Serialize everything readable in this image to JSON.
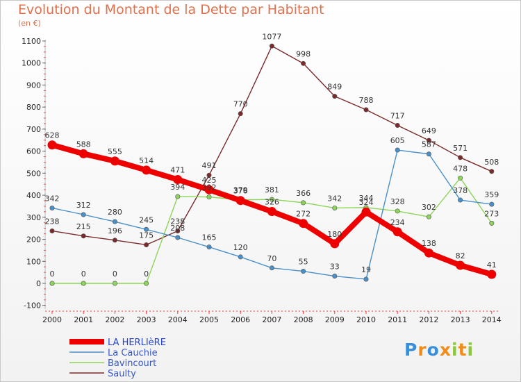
{
  "header": {
    "title": "Evolution du Montant de la Dette par Habitant",
    "unit": "(en €)"
  },
  "logo": {
    "text": "Proxiti"
  },
  "chart_data": {
    "type": "line",
    "title": "Evolution du Montant de la Dette par Habitant",
    "ylabel": "(en €)",
    "xlabel": "",
    "x": [
      "2000",
      "2001",
      "2002",
      "2003",
      "2004",
      "2005",
      "2006",
      "2007",
      "2008",
      "2009",
      "2010",
      "2011",
      "2012",
      "2013",
      "2014"
    ],
    "ylim": [
      -100,
      1100
    ],
    "yticks": [
      -100,
      0,
      100,
      200,
      300,
      400,
      500,
      600,
      700,
      800,
      900,
      1000,
      1100
    ],
    "grid": false,
    "legend_position": "bottom-left",
    "series": [
      {
        "name": "LA HERLIèRE",
        "color": "#ee0000",
        "values": [
          628,
          588,
          555,
          514,
          471,
          425,
          376,
          326,
          272,
          180,
          324,
          234,
          138,
          82,
          41
        ]
      },
      {
        "name": "La Cauchie",
        "color": "#4a90c8",
        "values": [
          342,
          312,
          280,
          245,
          208,
          165,
          120,
          70,
          55,
          33,
          19,
          605,
          587,
          378,
          359
        ]
      },
      {
        "name": "Bavincourt",
        "color": "#8cd45a",
        "values": [
          0,
          0,
          0,
          0,
          394,
          392,
          379,
          381,
          366,
          342,
          344,
          328,
          302,
          478,
          273
        ]
      },
      {
        "name": "Saulty",
        "color": "#7a2a2a",
        "values": [
          238,
          215,
          196,
          175,
          238,
          491,
          770,
          1077,
          998,
          849,
          788,
          717,
          649,
          571,
          508
        ]
      }
    ]
  }
}
